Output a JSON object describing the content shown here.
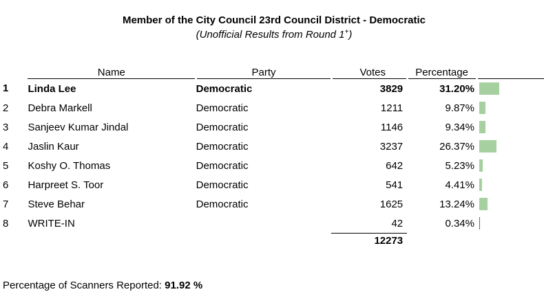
{
  "title": "Member of the City Council 23rd Council District - Democratic",
  "subtitle": "(Unofficial Results from Round 1",
  "subtitle_sup": "+",
  "subtitle_close": ")",
  "headers": {
    "name": "Name",
    "party": "Party",
    "votes": "Votes",
    "percentage": "Percentage"
  },
  "rows": [
    {
      "rank": "1",
      "name": "Linda Lee",
      "party": "Democratic",
      "votes": "3829",
      "percentage": "31.20%",
      "pct": 31.2,
      "winner": true
    },
    {
      "rank": "2",
      "name": "Debra Markell",
      "party": "Democratic",
      "votes": "1211",
      "percentage": "9.87%",
      "pct": 9.87
    },
    {
      "rank": "3",
      "name": "Sanjeev Kumar Jindal",
      "party": "Democratic",
      "votes": "1146",
      "percentage": "9.34%",
      "pct": 9.34
    },
    {
      "rank": "4",
      "name": "Jaslin Kaur",
      "party": "Democratic",
      "votes": "3237",
      "percentage": "26.37%",
      "pct": 26.37
    },
    {
      "rank": "5",
      "name": "Koshy O. Thomas",
      "party": "Democratic",
      "votes": "642",
      "percentage": "5.23%",
      "pct": 5.23
    },
    {
      "rank": "6",
      "name": "Harpreet S. Toor",
      "party": "Democratic",
      "votes": "541",
      "percentage": "4.41%",
      "pct": 4.41
    },
    {
      "rank": "7",
      "name": "Steve Behar",
      "party": "Democratic",
      "votes": "1625",
      "percentage": "13.24%",
      "pct": 13.24
    },
    {
      "rank": "8",
      "name": "WRITE-IN",
      "party": "",
      "votes": "42",
      "percentage": "0.34%",
      "pct": 0.34
    }
  ],
  "total_votes": "12273",
  "footer": {
    "label": "Percentage of Scanners Reported: ",
    "value": "91.92 %"
  },
  "colors": {
    "bar": "#a7d0a0"
  }
}
